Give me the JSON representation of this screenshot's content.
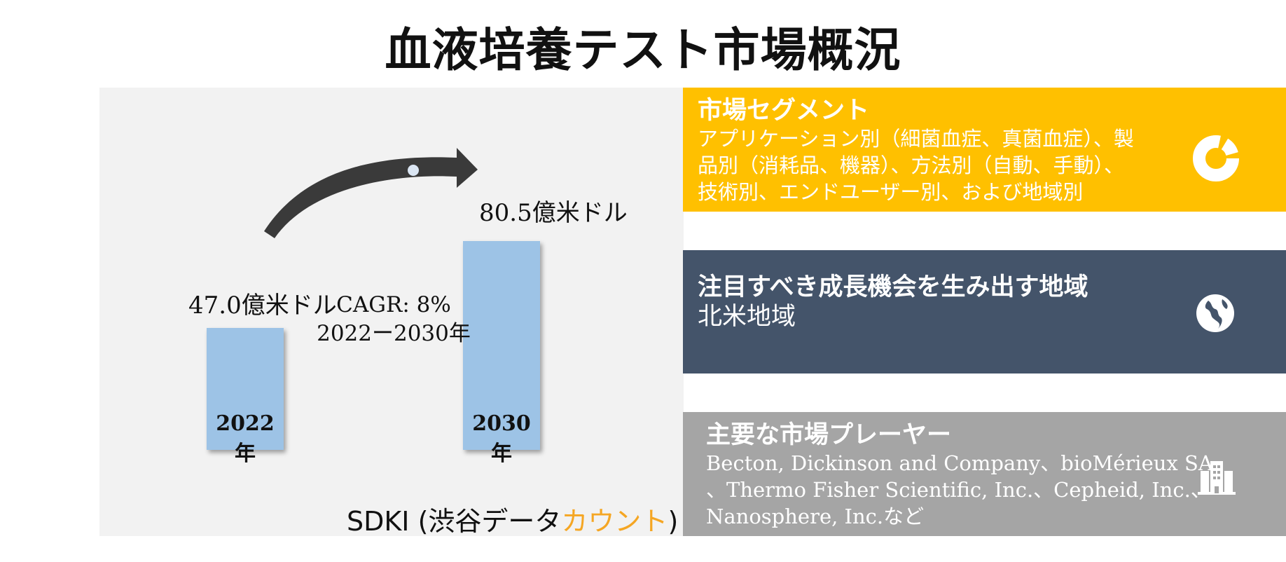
{
  "title": "血液培養テスト市場概況",
  "chart_data": {
    "type": "bar",
    "categories": [
      "2022年",
      "2030年"
    ],
    "values": [
      47.0,
      80.5
    ],
    "value_labels": [
      "47.0億米ドル",
      "80.5億米ドル"
    ],
    "unit": "億米ドル",
    "annotation_lines": [
      "CAGR: 8%",
      "2022ー2030年"
    ],
    "bar_color": "#9dc3e6"
  },
  "source": {
    "prefix": "SDKI (渋谷データ",
    "accent": "カウント",
    "suffix": ")",
    "accent_color": "#f5a623"
  },
  "panels": [
    {
      "heading": "市場セグメント",
      "body": [
        "アプリケーション別（細菌血症、真菌血症）、製",
        "品別（消耗品、機器）、方法別（自動、手動）、",
        "技術別、エンドユーザー別、および地域別"
      ],
      "icon": "donut-chart-icon",
      "color": "#ffc000"
    },
    {
      "heading": "注目すべき成長機会を生み出す地域",
      "body": [
        "北米地域"
      ],
      "icon": "globe-icon",
      "color": "#44546a"
    },
    {
      "heading": "主要な市場プレーヤー",
      "body": [
        "Becton, Dickinson and Company、bioMérieux SA",
        "、Thermo Fisher Scientific, Inc.、Cepheid, Inc.、",
        "Nanosphere, Inc.など"
      ],
      "icon": "building-icon",
      "color": "#a5a5a5"
    }
  ]
}
